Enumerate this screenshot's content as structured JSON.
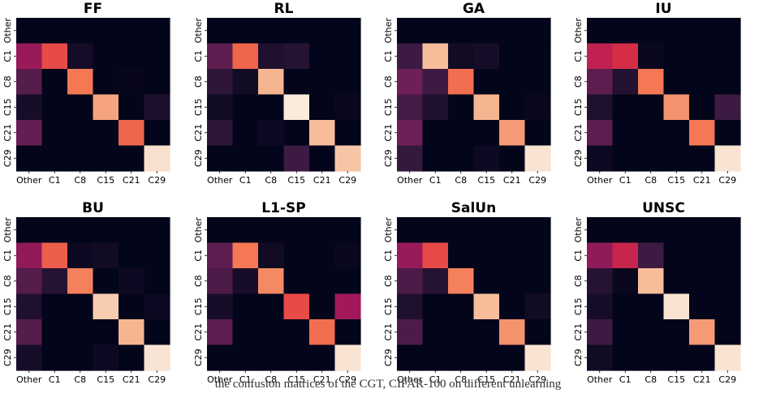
{
  "figure": {
    "caption": "the confusion matrices of the CGT, CIFAR-100 on different unlearning"
  },
  "colormap": {
    "name": "rocket",
    "stops": [
      "#03051a",
      "#35193e",
      "#701f57",
      "#ad1759",
      "#e13342",
      "#f37651",
      "#f6b48f",
      "#faebdd"
    ]
  },
  "chart_data": [
    {
      "type": "heatmap",
      "title": "FF",
      "x": [
        "Other",
        "C1",
        "C8",
        "C15",
        "C21",
        "C29"
      ],
      "y": [
        "Other",
        "C1",
        "C8",
        "C15",
        "C21",
        "C29"
      ],
      "values": [
        [
          0.0,
          0.0,
          0.0,
          0.0,
          0.0,
          0.0
        ],
        [
          0.38,
          0.62,
          0.05,
          0.0,
          0.0,
          0.0
        ],
        [
          0.22,
          0.0,
          0.72,
          0.0,
          0.01,
          0.0
        ],
        [
          0.06,
          0.0,
          0.0,
          0.82,
          0.0,
          0.07
        ],
        [
          0.26,
          0.0,
          0.0,
          0.0,
          0.68,
          0.0
        ],
        [
          0.0,
          0.0,
          0.0,
          0.0,
          0.0,
          0.97
        ]
      ]
    },
    {
      "type": "heatmap",
      "title": "RL",
      "x": [
        "Other",
        "C1",
        "C8",
        "C15",
        "C21",
        "C29"
      ],
      "y": [
        "Other",
        "C1",
        "C8",
        "C15",
        "C21",
        "C29"
      ],
      "values": [
        [
          0.0,
          0.0,
          0.0,
          0.0,
          0.0,
          0.0
        ],
        [
          0.24,
          0.68,
          0.08,
          0.1,
          0.0,
          0.0
        ],
        [
          0.12,
          0.04,
          0.86,
          0.0,
          0.0,
          0.0
        ],
        [
          0.04,
          0.0,
          0.0,
          1.0,
          0.0,
          0.02
        ],
        [
          0.12,
          0.0,
          0.03,
          0.0,
          0.88,
          0.0
        ],
        [
          0.0,
          0.0,
          0.0,
          0.16,
          0.0,
          0.9
        ]
      ]
    },
    {
      "type": "heatmap",
      "title": "GA",
      "x": [
        "Other",
        "C1",
        "C8",
        "C15",
        "C21",
        "C29"
      ],
      "y": [
        "Other",
        "C1",
        "C8",
        "C15",
        "C21",
        "C29"
      ],
      "values": [
        [
          0.0,
          0.0,
          0.0,
          0.0,
          0.0,
          0.0
        ],
        [
          0.16,
          0.88,
          0.04,
          0.06,
          0.0,
          0.0
        ],
        [
          0.28,
          0.16,
          0.7,
          0.0,
          0.0,
          0.0
        ],
        [
          0.18,
          0.08,
          0.0,
          0.86,
          0.0,
          0.02
        ],
        [
          0.28,
          0.0,
          0.0,
          0.0,
          0.8,
          0.0
        ],
        [
          0.14,
          0.0,
          0.0,
          0.03,
          0.0,
          0.98
        ]
      ]
    },
    {
      "type": "heatmap",
      "title": "IU",
      "x": [
        "Other",
        "C1",
        "C8",
        "C15",
        "C21",
        "C29"
      ],
      "y": [
        "Other",
        "C1",
        "C8",
        "C15",
        "C21",
        "C29"
      ],
      "values": [
        [
          0.0,
          0.0,
          0.0,
          0.0,
          0.0,
          0.0
        ],
        [
          0.48,
          0.54,
          0.02,
          0.0,
          0.0,
          0.0
        ],
        [
          0.24,
          0.09,
          0.72,
          0.0,
          0.0,
          0.0
        ],
        [
          0.08,
          0.0,
          0.0,
          0.78,
          0.0,
          0.16
        ],
        [
          0.24,
          0.0,
          0.0,
          0.0,
          0.72,
          0.0
        ],
        [
          0.03,
          0.0,
          0.0,
          0.0,
          0.0,
          0.98
        ]
      ]
    },
    {
      "type": "heatmap",
      "title": "BU",
      "x": [
        "Other",
        "C1",
        "C8",
        "C15",
        "C21",
        "C29"
      ],
      "y": [
        "Other",
        "C1",
        "C8",
        "C15",
        "C21",
        "C29"
      ],
      "values": [
        [
          0.0,
          0.0,
          0.0,
          0.0,
          0.0,
          0.0
        ],
        [
          0.36,
          0.66,
          0.03,
          0.04,
          0.0,
          0.0
        ],
        [
          0.22,
          0.1,
          0.74,
          0.0,
          0.03,
          0.0
        ],
        [
          0.08,
          0.0,
          0.0,
          0.92,
          0.0,
          0.03
        ],
        [
          0.22,
          0.0,
          0.0,
          0.0,
          0.86,
          0.0
        ],
        [
          0.06,
          0.0,
          0.0,
          0.03,
          0.0,
          0.98
        ]
      ]
    },
    {
      "type": "heatmap",
      "title": "L1-SP",
      "x": [
        "Other",
        "C1",
        "C8",
        "C15",
        "C21",
        "C29"
      ],
      "y": [
        "Other",
        "C1",
        "C8",
        "C15",
        "C21",
        "C29"
      ],
      "values": [
        [
          0.0,
          0.0,
          0.0,
          0.0,
          0.0,
          0.0
        ],
        [
          0.24,
          0.72,
          0.04,
          0.0,
          0.0,
          0.02
        ],
        [
          0.2,
          0.06,
          0.76,
          0.0,
          0.0,
          0.0
        ],
        [
          0.06,
          0.0,
          0.0,
          0.62,
          0.0,
          0.4
        ],
        [
          0.24,
          0.0,
          0.0,
          0.0,
          0.7,
          0.0
        ],
        [
          0.0,
          0.0,
          0.0,
          0.0,
          0.0,
          0.98
        ]
      ]
    },
    {
      "type": "heatmap",
      "title": "SalUn",
      "x": [
        "Other",
        "C1",
        "C8",
        "C15",
        "C21",
        "C29"
      ],
      "y": [
        "Other",
        "C1",
        "C8",
        "C15",
        "C21",
        "C29"
      ],
      "values": [
        [
          0.0,
          0.0,
          0.0,
          0.0,
          0.0,
          0.0
        ],
        [
          0.38,
          0.62,
          0.0,
          0.0,
          0.0,
          0.0
        ],
        [
          0.2,
          0.1,
          0.74,
          0.0,
          0.0,
          0.0
        ],
        [
          0.08,
          0.0,
          0.0,
          0.88,
          0.0,
          0.04
        ],
        [
          0.2,
          0.0,
          0.0,
          0.0,
          0.78,
          0.0
        ],
        [
          0.0,
          0.0,
          0.0,
          0.0,
          0.0,
          0.98
        ]
      ]
    },
    {
      "type": "heatmap",
      "title": "UNSC",
      "x": [
        "Other",
        "C1",
        "C8",
        "C15",
        "C21",
        "C29"
      ],
      "y": [
        "Other",
        "C1",
        "C8",
        "C15",
        "C21",
        "C29"
      ],
      "values": [
        [
          0.0,
          0.0,
          0.0,
          0.0,
          0.0,
          0.0
        ],
        [
          0.36,
          0.5,
          0.16,
          0.0,
          0.0,
          0.0
        ],
        [
          0.1,
          0.02,
          0.88,
          0.0,
          0.0,
          0.0
        ],
        [
          0.06,
          0.0,
          0.0,
          0.98,
          0.0,
          0.0
        ],
        [
          0.16,
          0.0,
          0.0,
          0.0,
          0.8,
          0.0
        ],
        [
          0.04,
          0.0,
          0.0,
          0.0,
          0.0,
          0.98
        ]
      ]
    }
  ]
}
